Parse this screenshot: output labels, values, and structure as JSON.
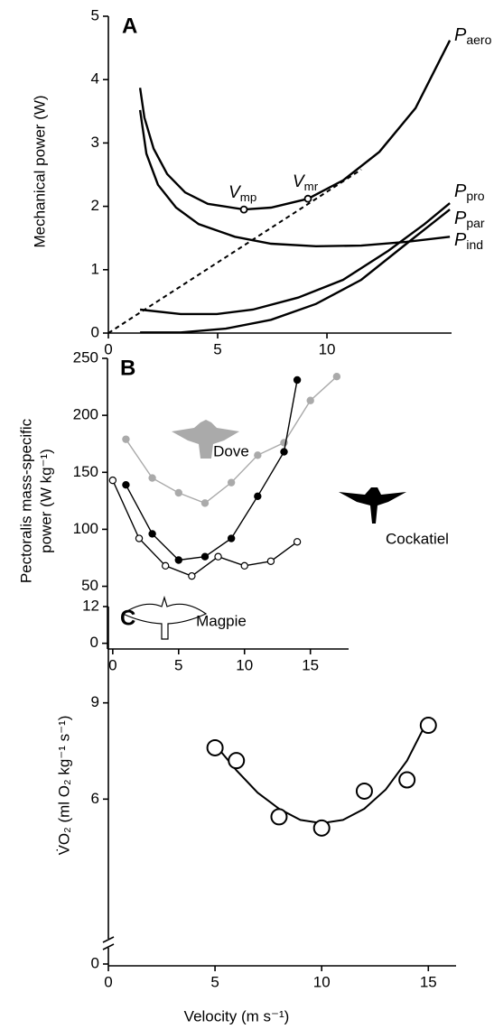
{
  "chart_data": [
    {
      "type": "line",
      "label": "A",
      "ylabel": "Mechanical power (W)",
      "xlim": [
        0,
        15.7
      ],
      "ylim": [
        0,
        5
      ],
      "xticks": [
        0,
        5,
        10
      ],
      "yticks": [
        0,
        1,
        2,
        3,
        4,
        5
      ],
      "series": [
        {
          "name": "P",
          "name_sub": "aero",
          "color": "#000000",
          "x": [
            1.45,
            1.65,
            2.07,
            2.69,
            3.51,
            4.55,
            6.2,
            7.44,
            9.13,
            10.74,
            12.4,
            14.05,
            15.62
          ],
          "values": [
            3.87,
            3.4,
            2.91,
            2.51,
            2.22,
            2.04,
            1.95,
            1.98,
            2.12,
            2.41,
            2.86,
            3.55,
            4.62
          ]
        },
        {
          "name": "P",
          "name_sub": "pro",
          "color": "#000000",
          "x": [
            1.45,
            3.31,
            4.96,
            6.61,
            8.68,
            10.74,
            12.81,
            14.46,
            15.62
          ],
          "values": [
            0.37,
            0.3,
            0.3,
            0.37,
            0.56,
            0.84,
            1.3,
            1.72,
            2.05
          ]
        },
        {
          "name": "P",
          "name_sub": "par",
          "color": "#000000",
          "x": [
            1.45,
            3.31,
            5.37,
            7.44,
            9.5,
            11.57,
            13.64,
            15.62
          ],
          "values": [
            0.01,
            0.01,
            0.07,
            0.21,
            0.46,
            0.84,
            1.41,
            1.95
          ]
        },
        {
          "name": "P",
          "name_sub": "ind",
          "color": "#000000",
          "x": [
            1.45,
            1.74,
            2.27,
            3.1,
            4.13,
            5.79,
            7.44,
            9.5,
            11.57,
            13.64,
            15.62
          ],
          "values": [
            3.52,
            2.83,
            2.34,
            1.98,
            1.72,
            1.52,
            1.41,
            1.37,
            1.38,
            1.44,
            1.52
          ]
        },
        {
          "color": "#000000",
          "dash": true,
          "x": [
            0,
            11.57
          ],
          "values": [
            0,
            2.58
          ]
        }
      ],
      "markers": [
        {
          "name": "V",
          "name_sub": "mp",
          "x": 6.2,
          "y": 1.95
        },
        {
          "name": "V",
          "name_sub": "mr",
          "x": 9.13,
          "y": 2.12
        }
      ]
    },
    {
      "type": "line",
      "label": "B",
      "ylabel": [
        "Pectoralis mass-specific",
        "power (W kg⁻¹)"
      ],
      "xlim": [
        -0.4,
        17.9
      ],
      "ylim": [
        -5,
        250
      ],
      "xticks": [
        0,
        5,
        10,
        15
      ],
      "yticks": [
        0,
        50,
        100,
        150,
        200,
        250
      ],
      "series": [
        {
          "name": "Dove",
          "color": "#aaaaaa",
          "marker": "filled",
          "x": [
            1,
            3,
            5,
            7,
            9,
            11,
            13,
            15,
            17
          ],
          "values": [
            179,
            145,
            132,
            123,
            141,
            165,
            176,
            213,
            234
          ]
        },
        {
          "name": "Cockatiel",
          "color": "#000000",
          "marker": "filled",
          "x": [
            1,
            3,
            5,
            7,
            9,
            11,
            13,
            14
          ],
          "values": [
            139,
            96,
            73,
            76,
            92,
            129,
            168,
            231
          ]
        },
        {
          "name": "Magpie",
          "color": "#000000",
          "marker": "open",
          "x": [
            0,
            2,
            4,
            6,
            8,
            10,
            12,
            14
          ],
          "values": [
            143,
            92,
            68,
            59,
            76,
            68,
            72,
            89
          ]
        }
      ]
    },
    {
      "type": "scatter",
      "label": "C",
      "ylabel": "V̇O₂ (ml O₂ kg⁻¹ s⁻¹)",
      "xlabel": "Velocity (m s⁻¹)",
      "xlim": [
        0,
        16.3
      ],
      "ylim": [
        1.65,
        12
      ],
      "axis_break": true,
      "xticks": [
        0,
        5,
        10,
        15
      ],
      "yticks": [
        0,
        6,
        9,
        12
      ],
      "x": [
        5,
        6,
        8,
        10,
        12,
        14,
        15
      ],
      "values": [
        7.6,
        7.2,
        5.45,
        5.1,
        6.25,
        6.6,
        8.3
      ],
      "fit": {
        "x": [
          5,
          6,
          7,
          8,
          9,
          10,
          11,
          12,
          13,
          14,
          15
        ],
        "values": [
          7.7,
          6.9,
          6.2,
          5.7,
          5.35,
          5.25,
          5.35,
          5.7,
          6.3,
          7.2,
          8.5
        ]
      }
    }
  ]
}
